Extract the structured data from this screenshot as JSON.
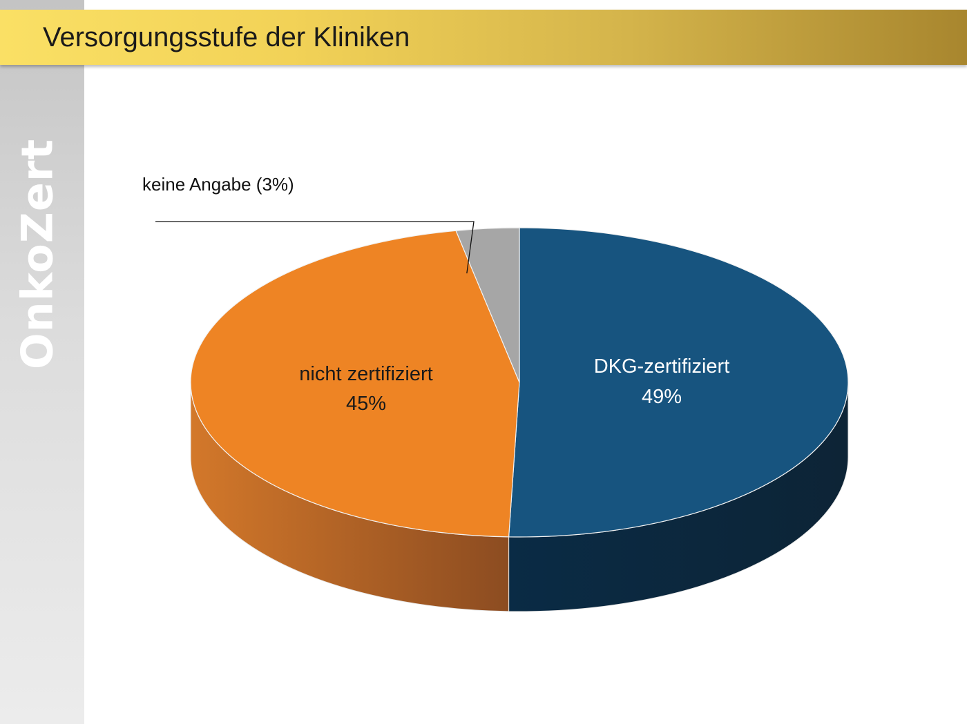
{
  "slide": {
    "title": "Versorgungsstufe der Kliniken",
    "brand": "OnkoZert"
  },
  "chart_data": {
    "type": "pie",
    "title": "Versorgungsstufe der Kliniken",
    "slices": [
      {
        "label": "DKG-zertifiziert",
        "value": 49,
        "value_label": "49%",
        "color": "#17547f",
        "side_color": "#0c2a42"
      },
      {
        "label": "nicht zertifiziert",
        "value": 45,
        "value_label": "45%",
        "color": "#ee8424",
        "side_color": "#b8612a"
      },
      {
        "label": "keine Angabe (3%)",
        "value": 3,
        "value_label": "",
        "color": "#a6a6a6",
        "side_color": "#7a7a7a"
      }
    ],
    "legend": "none",
    "style": "3d"
  }
}
